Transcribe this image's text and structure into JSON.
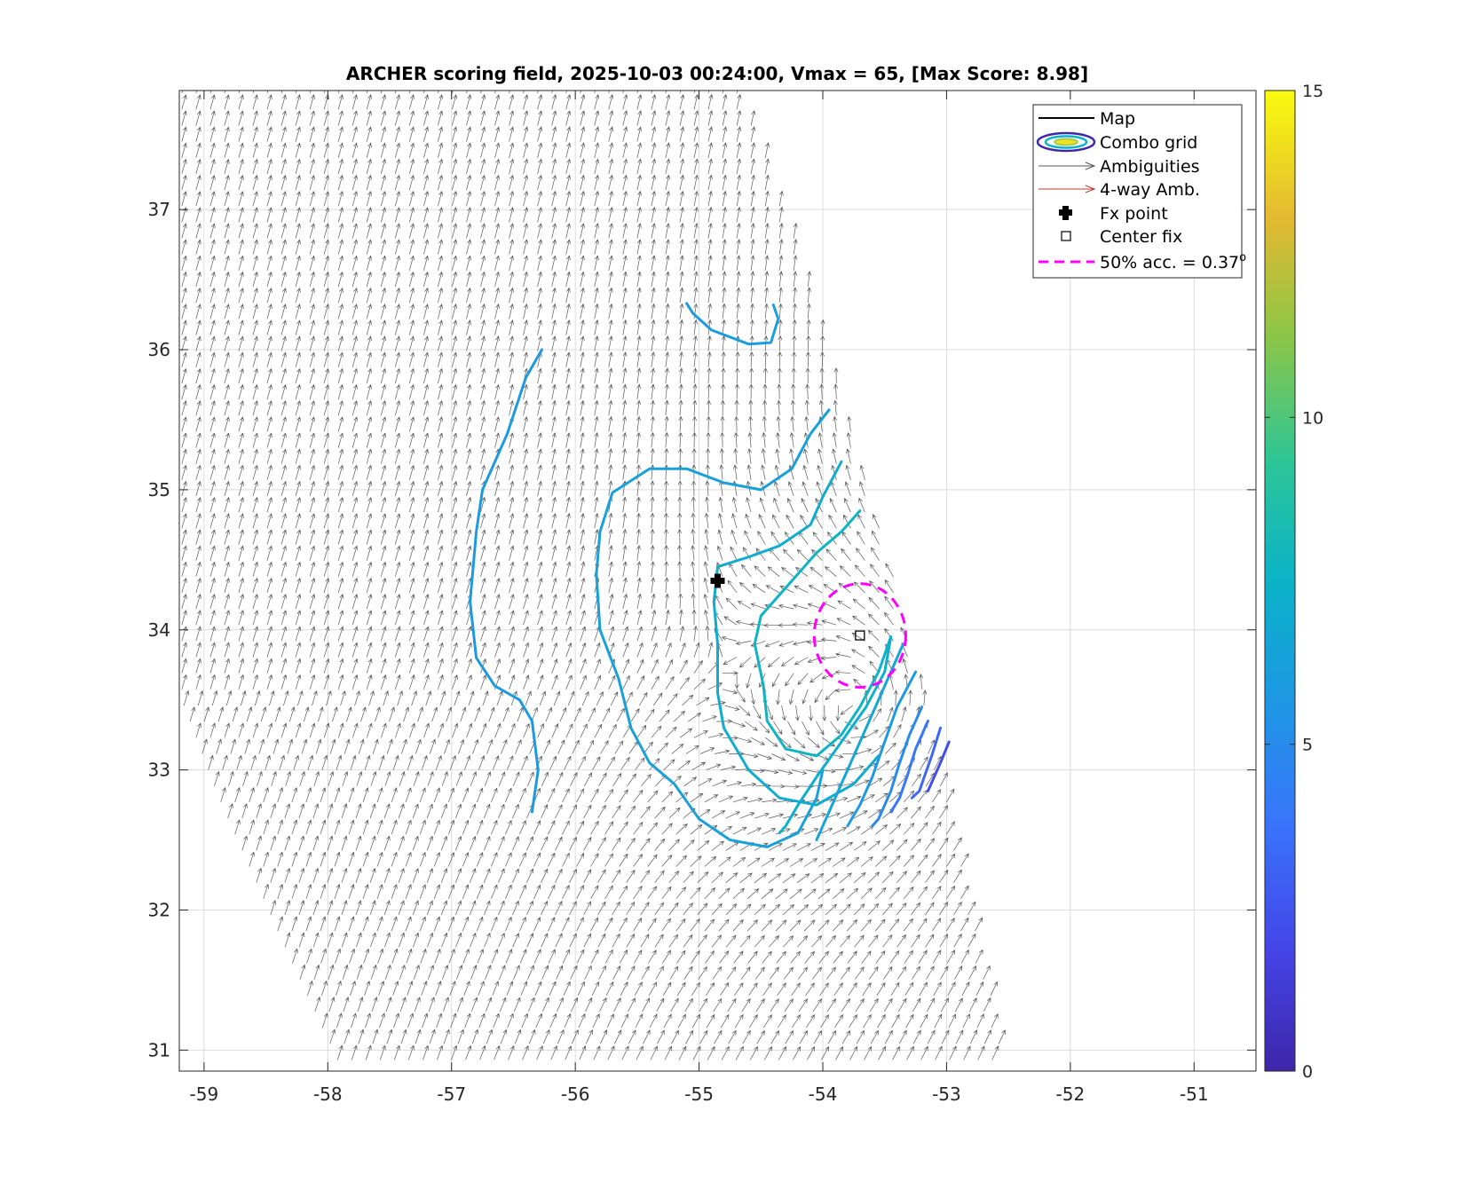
{
  "chart_data": {
    "type": "contour",
    "title": "ARCHER scoring field, 2025-10-03 00:24:00, Vmax = 65, [Max Score: 8.98]",
    "xlabel": "",
    "ylabel": "",
    "xlim": [
      -59.2,
      -50.5
    ],
    "ylim": [
      30.85,
      37.85
    ],
    "x_ticks": [
      -59,
      -58,
      -57,
      -56,
      -55,
      -54,
      -53,
      -52,
      -51
    ],
    "y_ticks": [
      31,
      32,
      33,
      34,
      35,
      36,
      37
    ],
    "x_tick_labels": [
      "-59",
      "-58",
      "-57",
      "-56",
      "-55",
      "-54",
      "-53",
      "-52",
      "-51"
    ],
    "y_tick_labels": [
      "31",
      "32",
      "33",
      "34",
      "35",
      "36",
      "37"
    ],
    "grid": true,
    "colorbar": {
      "min": 0,
      "max": 15,
      "ticks": [
        0,
        5,
        10,
        15
      ],
      "tick_labels": [
        "0",
        "5",
        "10",
        "15"
      ],
      "colormap": "parula"
    },
    "legend": {
      "placement": "top-right",
      "entries": [
        {
          "label": "Map",
          "icon": "solid-line-icon"
        },
        {
          "label": "Combo grid",
          "icon": "contour-ellipse-icon"
        },
        {
          "label": "Ambiguities",
          "icon": "gray-arrow-icon"
        },
        {
          "label": "4-way Amb.",
          "icon": "red-arrow-icon"
        },
        {
          "label": "Fx point",
          "icon": "plus-marker-icon"
        },
        {
          "label": "Center fix",
          "icon": "square-marker-icon"
        },
        {
          "label": "50% acc. = 0.37",
          "sup": "o",
          "icon": "magenta-dashed-line-icon"
        }
      ]
    },
    "fx_point": {
      "lon": -54.85,
      "lat": 34.35
    },
    "center_fix": {
      "lon": -53.7,
      "lat": 33.96
    },
    "accuracy_circle": {
      "center_lon": -53.7,
      "center_lat": 33.96,
      "radius_deg": 0.37
    },
    "swath_edges": {
      "left": [
        [
          -59.2,
          33.5
        ],
        [
          -58.9,
          32.8
        ],
        [
          -58.4,
          31.8
        ],
        [
          -57.9,
          30.85
        ]
      ],
      "right": [
        [
          -54.65,
          37.85
        ],
        [
          -54.1,
          36.5
        ],
        [
          -53.6,
          35.0
        ],
        [
          -53.2,
          33.6
        ],
        [
          -52.9,
          32.4
        ],
        [
          -52.5,
          30.85
        ]
      ]
    },
    "wind_center": {
      "lon": -53.75,
      "lat": 33.45
    },
    "contours": [
      {
        "level": 6.0,
        "points": [
          [
            -54.4,
            36.32
          ],
          [
            -54.36,
            36.22
          ],
          [
            -54.42,
            36.05
          ],
          [
            -54.6,
            36.04
          ],
          [
            -54.9,
            36.14
          ],
          [
            -55.05,
            36.26
          ],
          [
            -55.1,
            36.33
          ]
        ]
      },
      {
        "level": 5.8,
        "points": [
          [
            -56.27,
            36.0
          ],
          [
            -56.4,
            35.8
          ],
          [
            -56.55,
            35.4
          ],
          [
            -56.75,
            35.0
          ],
          [
            -56.8,
            34.7
          ],
          [
            -56.85,
            34.2
          ],
          [
            -56.8,
            33.8
          ],
          [
            -56.65,
            33.6
          ],
          [
            -56.45,
            33.5
          ],
          [
            -56.35,
            33.35
          ],
          [
            -56.3,
            33.0
          ],
          [
            -56.35,
            32.7
          ]
        ]
      },
      {
        "level": 6.2,
        "points": [
          [
            -53.95,
            35.57
          ],
          [
            -54.1,
            35.4
          ],
          [
            -54.25,
            35.15
          ],
          [
            -54.5,
            35.0
          ],
          [
            -54.8,
            35.05
          ],
          [
            -55.1,
            35.15
          ],
          [
            -55.4,
            35.15
          ],
          [
            -55.7,
            34.98
          ],
          [
            -55.8,
            34.7
          ],
          [
            -55.83,
            34.4
          ],
          [
            -55.8,
            34.0
          ],
          [
            -55.65,
            33.65
          ],
          [
            -55.55,
            33.3
          ],
          [
            -55.4,
            33.05
          ],
          [
            -55.2,
            32.9
          ],
          [
            -55.0,
            32.65
          ],
          [
            -54.75,
            32.5
          ],
          [
            -54.45,
            32.45
          ],
          [
            -54.2,
            32.55
          ],
          [
            -54.05,
            32.8
          ],
          [
            -54.0,
            33.0
          ]
        ]
      },
      {
        "level": 7.0,
        "points": [
          [
            -53.85,
            35.2
          ],
          [
            -54.0,
            34.95
          ],
          [
            -54.1,
            34.75
          ],
          [
            -54.35,
            34.6
          ],
          [
            -54.6,
            34.52
          ],
          [
            -54.85,
            34.45
          ],
          [
            -54.88,
            34.2
          ],
          [
            -54.85,
            33.9
          ],
          [
            -54.85,
            33.55
          ],
          [
            -54.8,
            33.3
          ],
          [
            -54.6,
            33.0
          ],
          [
            -54.35,
            32.8
          ],
          [
            -54.05,
            32.75
          ],
          [
            -53.75,
            32.9
          ],
          [
            -53.55,
            33.1
          ]
        ]
      },
      {
        "level": 7.6,
        "points": [
          [
            -53.7,
            34.85
          ],
          [
            -53.85,
            34.7
          ],
          [
            -54.05,
            34.55
          ],
          [
            -54.3,
            34.3
          ],
          [
            -54.5,
            34.1
          ],
          [
            -54.55,
            33.9
          ],
          [
            -54.48,
            33.6
          ],
          [
            -54.45,
            33.35
          ],
          [
            -54.3,
            33.15
          ],
          [
            -54.05,
            33.1
          ],
          [
            -53.85,
            33.25
          ],
          [
            -53.7,
            33.45
          ],
          [
            -53.55,
            33.7
          ],
          [
            -53.45,
            33.95
          ]
        ]
      },
      {
        "level": 7.2,
        "points": [
          [
            -53.45,
            33.95
          ],
          [
            -53.5,
            33.7
          ],
          [
            -53.65,
            33.45
          ],
          [
            -53.85,
            33.2
          ],
          [
            -54.05,
            32.95
          ],
          [
            -54.2,
            32.75
          ],
          [
            -54.3,
            32.6
          ],
          [
            -54.35,
            32.55
          ]
        ]
      },
      {
        "level": 6.6,
        "points": [
          [
            -53.35,
            33.9
          ],
          [
            -53.45,
            33.7
          ],
          [
            -53.6,
            33.4
          ],
          [
            -53.75,
            33.1
          ],
          [
            -53.85,
            32.9
          ],
          [
            -53.95,
            32.7
          ],
          [
            -54.05,
            32.5
          ]
        ]
      },
      {
        "level": 5.8,
        "points": [
          [
            -53.25,
            33.7
          ],
          [
            -53.4,
            33.45
          ],
          [
            -53.5,
            33.2
          ],
          [
            -53.6,
            32.95
          ],
          [
            -53.7,
            32.75
          ],
          [
            -53.8,
            32.6
          ]
        ]
      },
      {
        "level": 5.0,
        "points": [
          [
            -53.2,
            33.45
          ],
          [
            -53.3,
            33.25
          ],
          [
            -53.38,
            33.05
          ],
          [
            -53.45,
            32.85
          ],
          [
            -53.55,
            32.65
          ],
          [
            -53.6,
            32.6
          ]
        ]
      },
      {
        "level": 4.0,
        "points": [
          [
            -53.15,
            33.35
          ],
          [
            -53.25,
            33.15
          ],
          [
            -53.32,
            32.95
          ],
          [
            -53.38,
            32.8
          ],
          [
            -53.45,
            32.7
          ]
        ]
      },
      {
        "level": 3.2,
        "points": [
          [
            -53.05,
            33.3
          ],
          [
            -53.12,
            33.1
          ],
          [
            -53.18,
            32.95
          ],
          [
            -53.22,
            32.85
          ],
          [
            -53.28,
            32.8
          ]
        ]
      },
      {
        "level": 2.2,
        "points": [
          [
            -52.98,
            33.2
          ],
          [
            -53.05,
            33.05
          ],
          [
            -53.1,
            32.95
          ],
          [
            -53.15,
            32.85
          ]
        ]
      }
    ]
  }
}
